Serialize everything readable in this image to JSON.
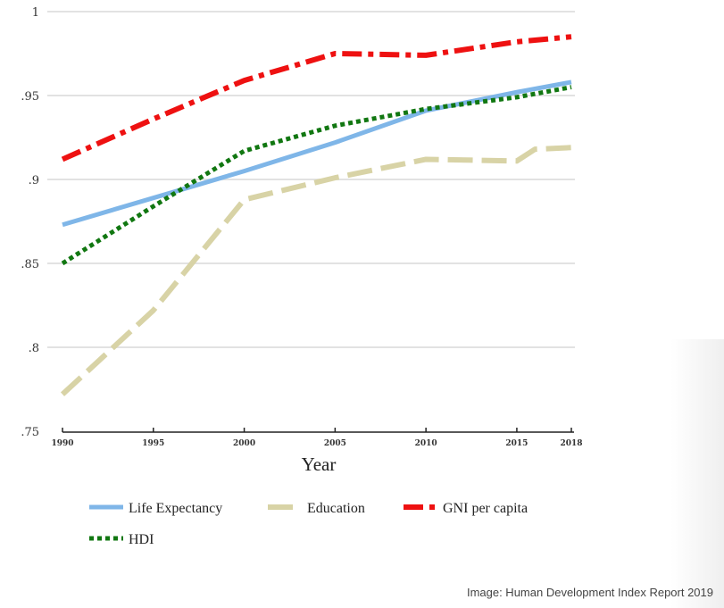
{
  "chart_data": {
    "type": "line",
    "title": "",
    "xlabel": "Year",
    "ylabel": "",
    "xlim": [
      1990,
      2018
    ],
    "ylim": [
      0.75,
      1
    ],
    "x_ticks": [
      "1990",
      "1995",
      "2000",
      "2005",
      "2010",
      "2015",
      "2018"
    ],
    "y_ticks": [
      ".75",
      ".8",
      ".85",
      ".9",
      ".95",
      "1"
    ],
    "grid": "horizontal",
    "legend_position": "bottom",
    "series": [
      {
        "name": "Life Expectancy",
        "color": "#7fb6e8",
        "style": "solid",
        "x": [
          1990,
          1995,
          2000,
          2005,
          2010,
          2015,
          2018
        ],
        "values": [
          0.873,
          0.889,
          0.905,
          0.922,
          0.941,
          0.952,
          0.958
        ]
      },
      {
        "name": "Education",
        "color": "#d8d3a6",
        "style": "long-dash",
        "x": [
          1990,
          1995,
          2000,
          2005,
          2010,
          2015,
          2016,
          2018
        ],
        "values": [
          0.772,
          0.822,
          0.888,
          0.901,
          0.912,
          0.911,
          0.918,
          0.919
        ]
      },
      {
        "name": "GNI per capita",
        "color": "#ee1111",
        "style": "dash-dot",
        "x": [
          1990,
          1995,
          2000,
          2005,
          2010,
          2015,
          2018
        ],
        "values": [
          0.912,
          0.936,
          0.959,
          0.975,
          0.974,
          0.982,
          0.985
        ]
      },
      {
        "name": "HDI",
        "color": "#117711",
        "style": "dotted",
        "x": [
          1990,
          1995,
          2000,
          2005,
          2010,
          2015,
          2018
        ],
        "values": [
          0.85,
          0.884,
          0.917,
          0.932,
          0.942,
          0.949,
          0.955
        ]
      }
    ]
  },
  "caption": "Image: Human Development Index Report 2019"
}
